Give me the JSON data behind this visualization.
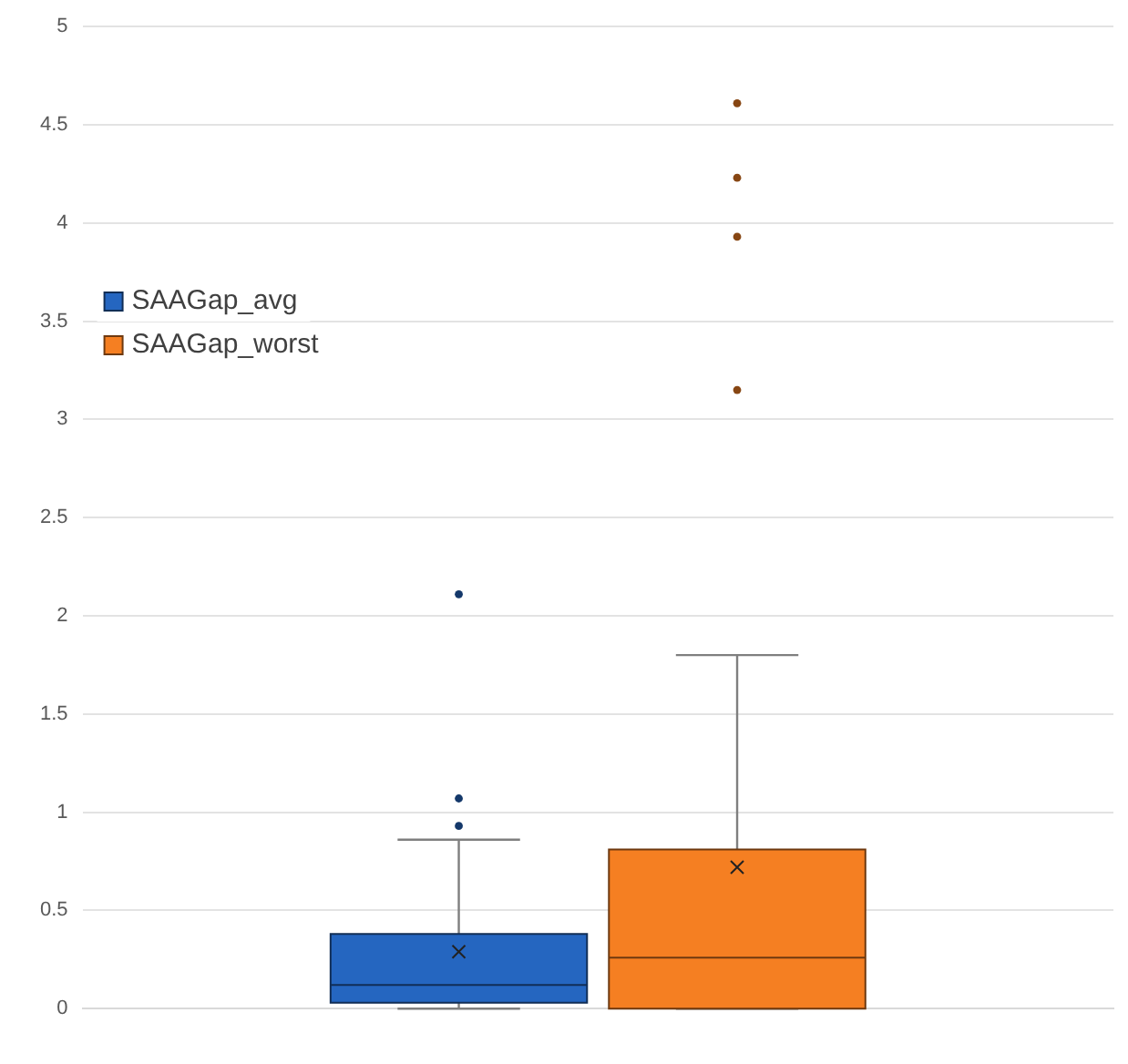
{
  "chart_data": {
    "type": "box",
    "categories": [
      null
    ],
    "series": [
      {
        "name": "SAAGap_avg",
        "color": "#2566c0",
        "boxes": [
          {
            "low": 0,
            "q1": 0.03,
            "median": 0.12,
            "q3": 0.38,
            "high": 0.86,
            "mean": 0.29,
            "outliers": [
              0.93,
              1.07,
              2.11
            ]
          }
        ]
      },
      {
        "name": "SAAGap_worst",
        "color": "#f57f22",
        "boxes": [
          {
            "low": 0,
            "q1": 0,
            "median": 0.26,
            "q3": 0.81,
            "high": 1.8,
            "mean": 0.72,
            "outliers": [
              3.15,
              3.93,
              4.23,
              4.61
            ]
          }
        ]
      }
    ],
    "ylim": [
      0,
      5
    ],
    "yticks": [
      0,
      0.5,
      1,
      1.5,
      2,
      2.5,
      3,
      3.5,
      4,
      4.5,
      5
    ],
    "grid": "y",
    "legend": "top left",
    "marker": "circle"
  }
}
